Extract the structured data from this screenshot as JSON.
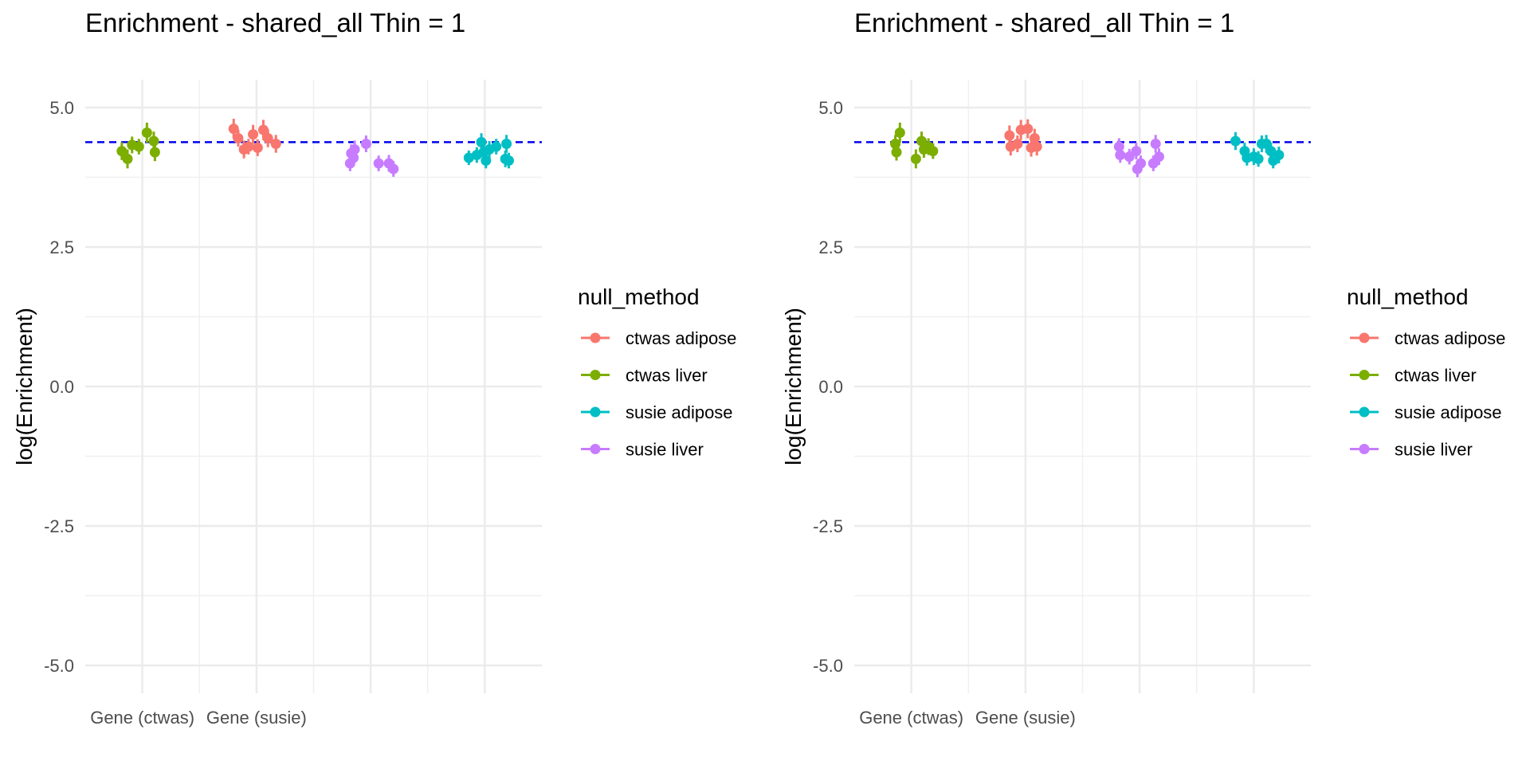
{
  "chart_data": [
    {
      "type": "scatter",
      "title": "Enrichment - shared_all Thin = 1",
      "xlabel": "",
      "ylabel": "log(Enrichment)",
      "ylim": [
        -5.5,
        5.5
      ],
      "y_ticks": [
        "5.0",
        "2.5",
        "0.0",
        "-2.5",
        "-5.0"
      ],
      "y_tick_values": [
        5.0,
        2.5,
        0.0,
        -2.5,
        -5.0
      ],
      "x_tick_labels": [
        "Gene (ctwas)",
        "Gene (susie)",
        "",
        ""
      ],
      "reference_line": {
        "y": 4.38,
        "color": "#0000ee",
        "style": "dashed"
      },
      "grid": true,
      "legend": {
        "title": "null_method",
        "placement": "right"
      },
      "series": [
        {
          "name": "ctwas adipose",
          "color": "#f8766d",
          "points": [
            {
              "x": 1.8,
              "y": 4.62,
              "err": 0.18
            },
            {
              "x": 1.84,
              "y": 4.45,
              "err": 0.15
            },
            {
              "x": 1.89,
              "y": 4.25,
              "err": 0.16
            },
            {
              "x": 1.93,
              "y": 4.3,
              "err": 0.14
            },
            {
              "x": 1.97,
              "y": 4.52,
              "err": 0.17
            },
            {
              "x": 2.01,
              "y": 4.28,
              "err": 0.15
            },
            {
              "x": 2.06,
              "y": 4.6,
              "err": 0.18
            },
            {
              "x": 2.1,
              "y": 4.45,
              "err": 0.16
            },
            {
              "x": 2.17,
              "y": 4.35,
              "err": 0.16
            }
          ]
        },
        {
          "name": "ctwas liver",
          "color": "#7cae00",
          "points": [
            {
              "x": 0.82,
              "y": 4.22,
              "err": 0.16
            },
            {
              "x": 0.87,
              "y": 4.08,
              "err": 0.17
            },
            {
              "x": 0.91,
              "y": 4.33,
              "err": 0.15
            },
            {
              "x": 0.97,
              "y": 4.3,
              "err": 0.14
            },
            {
              "x": 1.04,
              "y": 4.55,
              "err": 0.18
            },
            {
              "x": 1.1,
              "y": 4.4,
              "err": 0.17
            },
            {
              "x": 1.11,
              "y": 4.2,
              "err": 0.16
            }
          ]
        },
        {
          "name": "susie adipose",
          "color": "#00bfc4",
          "points": [
            {
              "x": 3.86,
              "y": 4.1,
              "err": 0.13
            },
            {
              "x": 3.93,
              "y": 4.15,
              "err": 0.14
            },
            {
              "x": 3.97,
              "y": 4.38,
              "err": 0.16
            },
            {
              "x": 3.99,
              "y": 4.2,
              "err": 0.15
            },
            {
              "x": 4.01,
              "y": 4.05,
              "err": 0.14
            },
            {
              "x": 4.04,
              "y": 4.25,
              "err": 0.15
            },
            {
              "x": 4.1,
              "y": 4.3,
              "err": 0.14
            },
            {
              "x": 4.18,
              "y": 4.08,
              "err": 0.15
            },
            {
              "x": 4.19,
              "y": 4.35,
              "err": 0.16
            },
            {
              "x": 4.21,
              "y": 4.05,
              "err": 0.14
            }
          ]
        },
        {
          "name": "susie liver",
          "color": "#c77cff",
          "points": [
            {
              "x": 2.82,
              "y": 4.0,
              "err": 0.14
            },
            {
              "x": 2.83,
              "y": 4.18,
              "err": 0.16
            },
            {
              "x": 2.85,
              "y": 4.1,
              "err": 0.15
            },
            {
              "x": 2.86,
              "y": 4.25,
              "err": 0.16
            },
            {
              "x": 2.96,
              "y": 4.35,
              "err": 0.15
            },
            {
              "x": 3.07,
              "y": 4.0,
              "err": 0.14
            },
            {
              "x": 3.16,
              "y": 4.0,
              "err": 0.15
            },
            {
              "x": 3.2,
              "y": 3.9,
              "err": 0.14
            }
          ]
        }
      ]
    },
    {
      "type": "scatter",
      "title": "Enrichment - shared_all Thin = 1",
      "xlabel": "",
      "ylabel": "log(Enrichment)",
      "ylim": [
        -5.5,
        5.5
      ],
      "y_ticks": [
        "5.0",
        "2.5",
        "0.0",
        "-2.5",
        "-5.0"
      ],
      "y_tick_values": [
        5.0,
        2.5,
        0.0,
        -2.5,
        -5.0
      ],
      "x_tick_labels": [
        "Gene (ctwas)",
        "Gene (susie)",
        "",
        ""
      ],
      "reference_line": {
        "y": 4.38,
        "color": "#0000ee",
        "style": "dashed"
      },
      "grid": true,
      "legend": {
        "title": "null_method",
        "placement": "right"
      },
      "series": [
        {
          "name": "ctwas adipose",
          "color": "#f8766d",
          "points": [
            {
              "x": 1.86,
              "y": 4.5,
              "err": 0.18
            },
            {
              "x": 1.87,
              "y": 4.3,
              "err": 0.16
            },
            {
              "x": 1.93,
              "y": 4.35,
              "err": 0.15
            },
            {
              "x": 1.96,
              "y": 4.6,
              "err": 0.18
            },
            {
              "x": 2.02,
              "y": 4.62,
              "err": 0.17
            },
            {
              "x": 2.05,
              "y": 4.28,
              "err": 0.16
            },
            {
              "x": 2.08,
              "y": 4.45,
              "err": 0.17
            },
            {
              "x": 2.1,
              "y": 4.3,
              "err": 0.16
            }
          ]
        },
        {
          "name": "ctwas liver",
          "color": "#7cae00",
          "points": [
            {
              "x": 0.86,
              "y": 4.35,
              "err": 0.16
            },
            {
              "x": 0.87,
              "y": 4.2,
              "err": 0.15
            },
            {
              "x": 0.9,
              "y": 4.55,
              "err": 0.18
            },
            {
              "x": 1.04,
              "y": 4.08,
              "err": 0.17
            },
            {
              "x": 1.09,
              "y": 4.4,
              "err": 0.17
            },
            {
              "x": 1.11,
              "y": 4.25,
              "err": 0.15
            },
            {
              "x": 1.15,
              "y": 4.3,
              "err": 0.15
            },
            {
              "x": 1.19,
              "y": 4.22,
              "err": 0.14
            }
          ]
        },
        {
          "name": "susie adipose",
          "color": "#00bfc4",
          "points": [
            {
              "x": 3.84,
              "y": 4.4,
              "err": 0.16
            },
            {
              "x": 3.92,
              "y": 4.22,
              "err": 0.15
            },
            {
              "x": 3.94,
              "y": 4.1,
              "err": 0.14
            },
            {
              "x": 4.0,
              "y": 4.12,
              "err": 0.15
            },
            {
              "x": 4.04,
              "y": 4.08,
              "err": 0.14
            },
            {
              "x": 4.07,
              "y": 4.35,
              "err": 0.15
            },
            {
              "x": 4.11,
              "y": 4.35,
              "err": 0.16
            },
            {
              "x": 4.15,
              "y": 4.22,
              "err": 0.15
            },
            {
              "x": 4.17,
              "y": 4.05,
              "err": 0.14
            },
            {
              "x": 4.22,
              "y": 4.15,
              "err": 0.15
            }
          ]
        },
        {
          "name": "susie liver",
          "color": "#c77cff",
          "points": [
            {
              "x": 2.82,
              "y": 4.3,
              "err": 0.15
            },
            {
              "x": 2.83,
              "y": 4.15,
              "err": 0.14
            },
            {
              "x": 2.91,
              "y": 4.12,
              "err": 0.14
            },
            {
              "x": 2.97,
              "y": 4.22,
              "err": 0.15
            },
            {
              "x": 2.98,
              "y": 3.9,
              "err": 0.15
            },
            {
              "x": 3.01,
              "y": 4.0,
              "err": 0.14
            },
            {
              "x": 3.12,
              "y": 4.0,
              "err": 0.14
            },
            {
              "x": 3.14,
              "y": 4.35,
              "err": 0.16
            },
            {
              "x": 3.17,
              "y": 4.12,
              "err": 0.15
            }
          ]
        }
      ]
    }
  ]
}
